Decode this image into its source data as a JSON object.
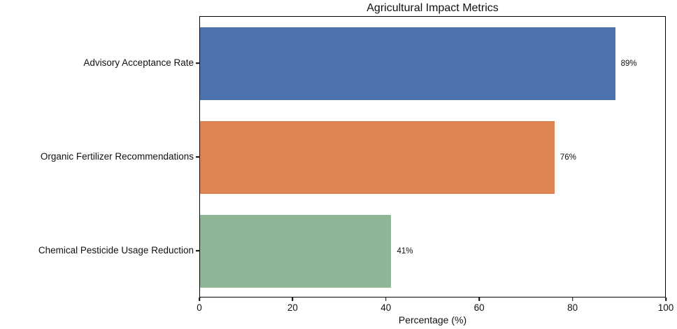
{
  "chart_data": {
    "type": "bar",
    "orientation": "horizontal",
    "title": "Agricultural Impact Metrics",
    "xlabel": "Percentage (%)",
    "categories": [
      "Advisory Acceptance Rate",
      "Organic Fertilizer Recommendations",
      "Chemical Pesticide Usage Reduction"
    ],
    "values": [
      89,
      76,
      41
    ],
    "value_labels": [
      "89%",
      "76%",
      "41%"
    ],
    "bar_colors": [
      "#4C72B0",
      "#DD8452",
      "#8CB695"
    ],
    "xlim": [
      0,
      100
    ],
    "xticks": [
      0,
      20,
      40,
      60,
      80,
      100
    ],
    "xtick_labels": [
      "0",
      "20",
      "40",
      "60",
      "80",
      "100"
    ],
    "grid": false,
    "legend": "none",
    "frame": "full-box",
    "background_color": "#ffffff",
    "text_color": "#111111"
  }
}
